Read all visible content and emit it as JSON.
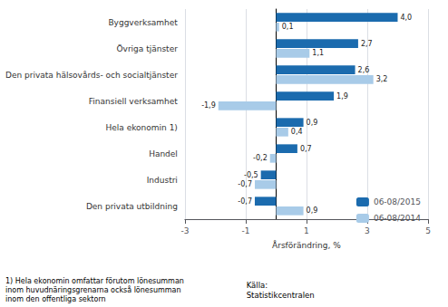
{
  "chart_data": {
    "type": "bar",
    "orientation": "horizontal",
    "categories": [
      "Byggverksamhet",
      "Övriga tjänster",
      "Den privata hälsovårds- och socialtjänster",
      "Finansiell verksamhet",
      "Hela ekonomin 1)",
      "Handel",
      "Industri",
      "Den privata utbildning"
    ],
    "series": [
      {
        "name": "06-08/2015",
        "color": "#1B6BAE",
        "values": [
          4.0,
          2.7,
          2.6,
          1.9,
          0.9,
          0.7,
          -0.5,
          -0.7
        ],
        "value_labels": [
          "4,0",
          "2,7",
          "2,6",
          "1,9",
          "0,9",
          "0,7",
          "-0,5",
          "-0,7"
        ]
      },
      {
        "name": "06-08/2014",
        "color": "#A8CBE8",
        "values": [
          0.1,
          1.1,
          3.2,
          -1.9,
          0.4,
          -0.2,
          -0.7,
          0.9
        ],
        "value_labels": [
          "0,1",
          "1,1",
          "3,2",
          "-1,9",
          "0,4",
          "-0,2",
          "-0,7",
          "0,9"
        ]
      }
    ],
    "xlabel": "Årsförändring, %",
    "xlim": [
      -3,
      5
    ],
    "xticks": [
      -3,
      -1,
      1,
      3,
      5
    ],
    "grid": true,
    "legend": "lower right",
    "data_labels": true,
    "annotations": [
      "1) Hela ekonomin omfattar förutom lönesumman\ninom huvudnäringsgrenarna också lönesumman\ninom den offentliga sektorn",
      "Källa:\nStatistikcentralen"
    ]
  }
}
